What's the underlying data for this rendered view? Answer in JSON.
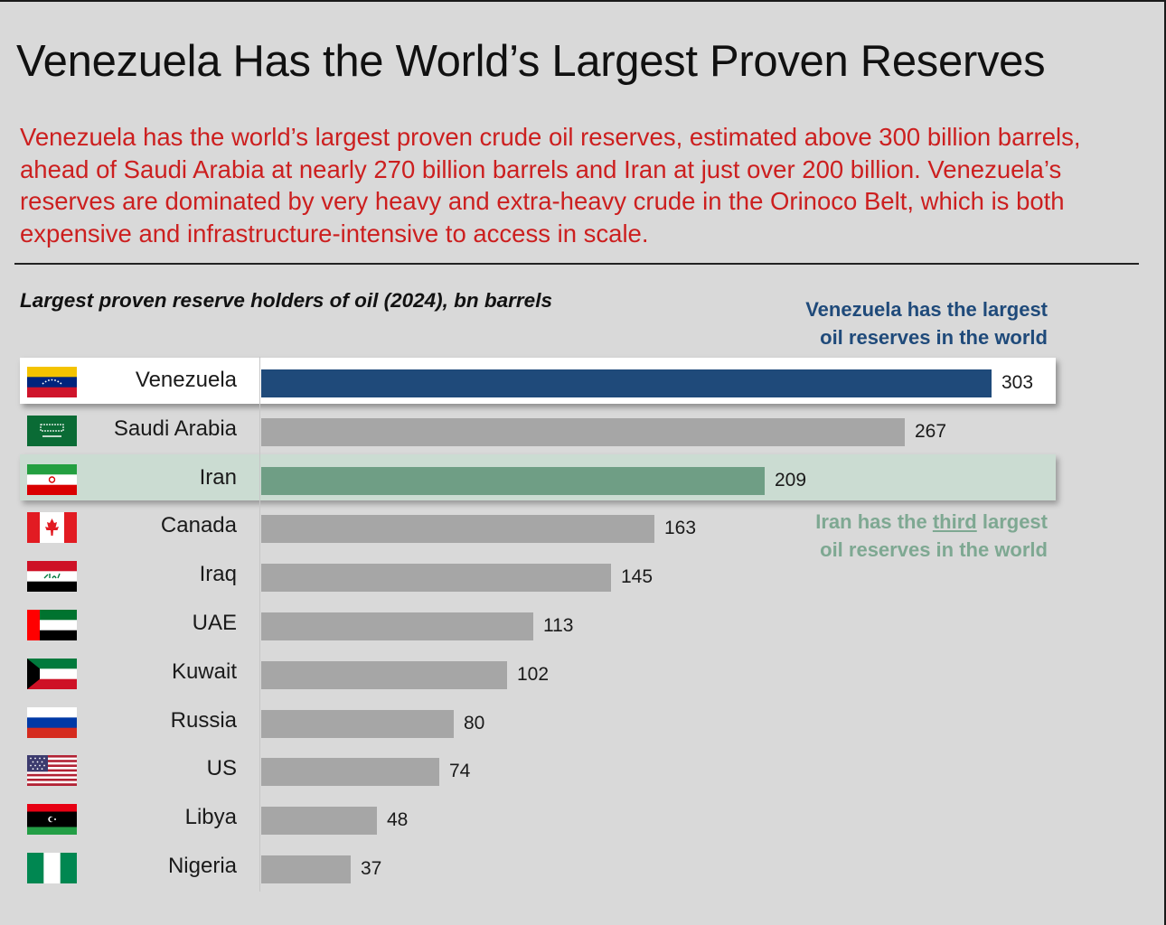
{
  "header": {
    "title": "Venezuela Has the World’s Largest Proven Reserves",
    "subtitle": "Venezuela has the world’s largest proven crude oil reserves, estimated above 300 billion barrels, ahead of Saudi Arabia at nearly 270 billion barrels and Iran at just over 200 billion.  Venezuela’s reserves are dominated by very heavy and extra-heavy crude in the Orinoco Belt, which is both expensive and infrastructure-intensive to access in scale."
  },
  "annotations": {
    "venezuela_line1": "Venezuela has the largest",
    "venezuela_line2": "oil reserves in the world",
    "iran_pre": "Iran has the ",
    "iran_underlined": "third",
    "iran_post": " largest",
    "iran_line2": "oil reserves in the world"
  },
  "colors": {
    "highlight_primary": "#1f4a7a",
    "highlight_secondary": "#6f9e85",
    "default_bar": "#a6a6a6",
    "subtitle_text": "#cc1f1f"
  },
  "chart_data": {
    "type": "bar",
    "orientation": "horizontal",
    "title": "Largest proven reserve holders of oil (2024), bn barrels",
    "xlim": [
      0,
      303
    ],
    "categories": [
      "Venezuela",
      "Saudi Arabia",
      "Iran",
      "Canada",
      "Iraq",
      "UAE",
      "Kuwait",
      "Russia",
      "US",
      "Libya",
      "Nigeria"
    ],
    "values": [
      303,
      267,
      209,
      163,
      145,
      113,
      102,
      80,
      74,
      48,
      37
    ],
    "flags": [
      "venezuela-flag-icon",
      "saudi-arabia-flag-icon",
      "iran-flag-icon",
      "canada-flag-icon",
      "iraq-flag-icon",
      "uae-flag-icon",
      "kuwait-flag-icon",
      "russia-flag-icon",
      "us-flag-icon",
      "libya-flag-icon",
      "nigeria-flag-icon"
    ],
    "highlight": {
      "Venezuela": "primary",
      "Iran": "secondary"
    }
  }
}
